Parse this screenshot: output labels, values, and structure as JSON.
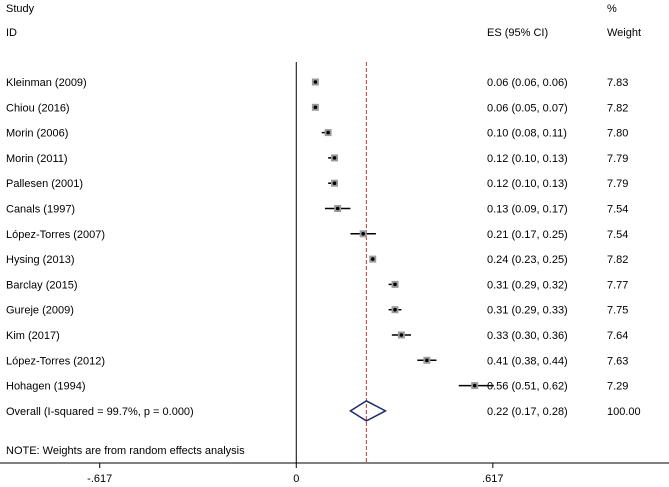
{
  "header": {
    "study_line1": "Study",
    "study_line2": "ID",
    "es_label": "ES (95% CI)",
    "weight_line1": "%",
    "weight_line2": "Weight"
  },
  "note": "NOTE: Weights are from random effects analysis",
  "chart_data": {
    "type": "forest",
    "x_ticks": [
      {
        "value": -0.617,
        "label": "-.617"
      },
      {
        "value": 0,
        "label": "0"
      },
      {
        "value": 0.617,
        "label": ".617"
      }
    ],
    "xlim": [
      -0.93,
      1.17
    ],
    "null_line": 0,
    "overall_line": 0.22,
    "marker_color": "#000000",
    "reference_line_color": "#000000",
    "overall_line_color": "#c0392b",
    "diamond_color": "#1f2a6b",
    "studies": [
      {
        "id": "Kleinman (2009)",
        "es": 0.06,
        "lo": 0.06,
        "hi": 0.06,
        "es_text": "0.06 (0.06, 0.06)",
        "weight": "7.83"
      },
      {
        "id": "Chiou (2016)",
        "es": 0.06,
        "lo": 0.05,
        "hi": 0.07,
        "es_text": "0.06 (0.05, 0.07)",
        "weight": "7.82"
      },
      {
        "id": "Morin (2006)",
        "es": 0.1,
        "lo": 0.08,
        "hi": 0.11,
        "es_text": "0.10 (0.08, 0.11)",
        "weight": "7.80"
      },
      {
        "id": "Morin (2011)",
        "es": 0.12,
        "lo": 0.1,
        "hi": 0.13,
        "es_text": "0.12 (0.10, 0.13)",
        "weight": "7.79"
      },
      {
        "id": "Pallesen (2001)",
        "es": 0.12,
        "lo": 0.1,
        "hi": 0.13,
        "es_text": "0.12 (0.10, 0.13)",
        "weight": "7.79"
      },
      {
        "id": "Canals (1997)",
        "es": 0.13,
        "lo": 0.09,
        "hi": 0.17,
        "es_text": "0.13 (0.09, 0.17)",
        "weight": "7.54"
      },
      {
        "id": "López-Torres (2007)",
        "es": 0.21,
        "lo": 0.17,
        "hi": 0.25,
        "es_text": "0.21 (0.17, 0.25)",
        "weight": "7.54"
      },
      {
        "id": "Hysing (2013)",
        "es": 0.24,
        "lo": 0.23,
        "hi": 0.25,
        "es_text": "0.24 (0.23, 0.25)",
        "weight": "7.82"
      },
      {
        "id": "Barclay (2015)",
        "es": 0.31,
        "lo": 0.29,
        "hi": 0.32,
        "es_text": "0.31 (0.29, 0.32)",
        "weight": "7.77"
      },
      {
        "id": "Gureje (2009)",
        "es": 0.31,
        "lo": 0.29,
        "hi": 0.33,
        "es_text": "0.31 (0.29, 0.33)",
        "weight": "7.75"
      },
      {
        "id": "Kim (2017)",
        "es": 0.33,
        "lo": 0.3,
        "hi": 0.36,
        "es_text": "0.33 (0.30, 0.36)",
        "weight": "7.64"
      },
      {
        "id": "López-Torres (2012)",
        "es": 0.41,
        "lo": 0.38,
        "hi": 0.44,
        "es_text": "0.41 (0.38, 0.44)",
        "weight": "7.63"
      },
      {
        "id": "Hohagen (1994)",
        "es": 0.56,
        "lo": 0.51,
        "hi": 0.62,
        "es_text": "0.56 (0.51, 0.62)",
        "weight": "7.29"
      }
    ],
    "overall": {
      "id": "Overall  (I-squared = 99.7%, p = 0.000)",
      "es": 0.22,
      "lo": 0.17,
      "hi": 0.28,
      "es_text": "0.22 (0.17, 0.28)",
      "weight": "100.00"
    }
  }
}
